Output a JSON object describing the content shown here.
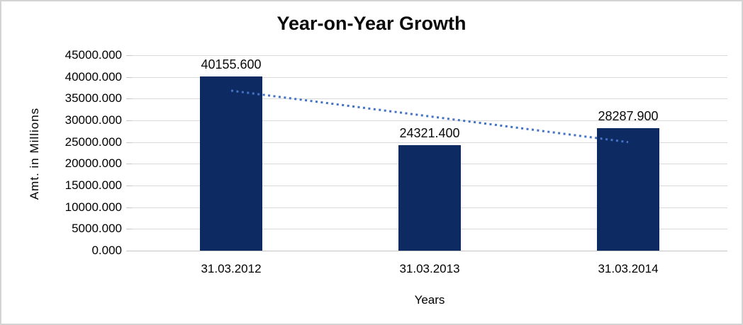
{
  "chart_data": {
    "type": "bar",
    "title": "Year-on-Year Growth",
    "xlabel": "Years",
    "ylabel": "Amt. in Millions",
    "categories": [
      "31.03.2012",
      "31.03.2013",
      "31.03.2014"
    ],
    "values": [
      40155.6,
      24321.4,
      28287.9
    ],
    "value_labels": [
      "40155.600",
      "24321.400",
      "28287.900"
    ],
    "ylim": [
      0,
      45000
    ],
    "ytick_step": 5000,
    "ytick_labels": [
      "0.000",
      "5000.000",
      "10000.000",
      "15000.000",
      "20000.000",
      "25000.000",
      "30000.000",
      "35000.000",
      "40000.000",
      "45000.000"
    ],
    "grid": "horizontal",
    "legend": "none",
    "trendline": {
      "style": "dotted-linear",
      "start_value": 36850,
      "end_value": 25000
    },
    "colors": {
      "bar": "#0d2a63",
      "trendline": "#4472c4",
      "gridline": "#d9d9d9",
      "axis_line": "#c6c6c6",
      "text": "#0a0a0a",
      "background": "#ffffff",
      "border": "#d4d4d4"
    }
  }
}
